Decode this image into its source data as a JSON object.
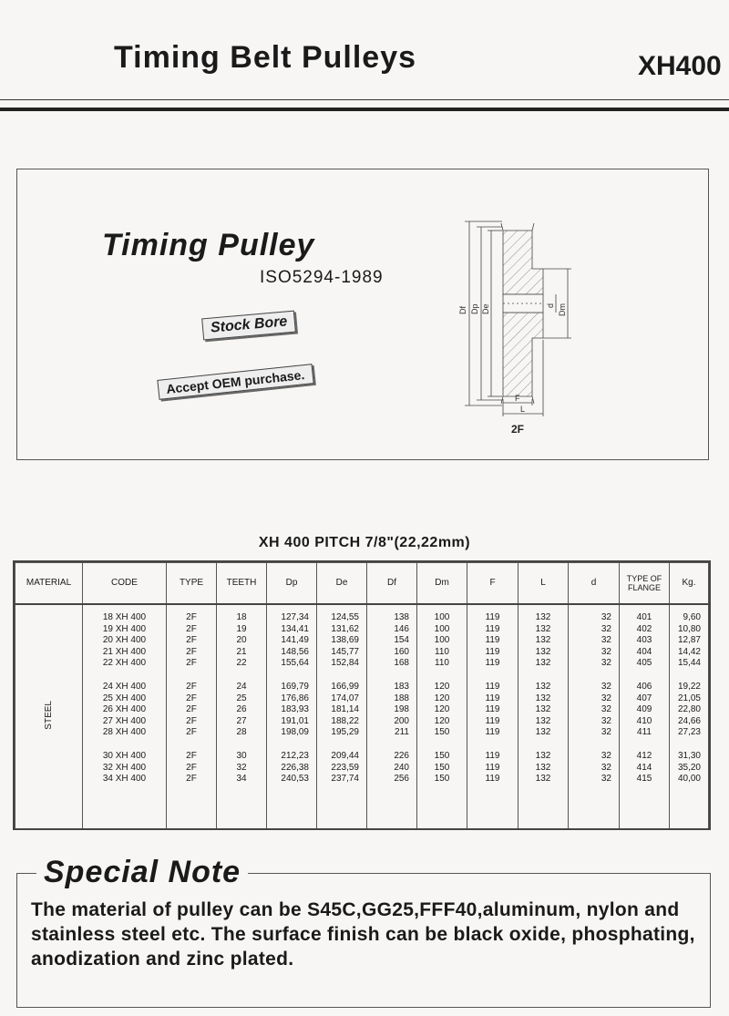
{
  "header": {
    "title": "Timing Belt Pulleys",
    "code": "XH400"
  },
  "banner": {
    "heading": "Timing Pulley",
    "standard": "ISO5294-1989",
    "tag_stock": "Stock Bore",
    "tag_oem": "Accept OEM purchase.",
    "diagram_labels": {
      "df": "Df",
      "dp": "Dp",
      "de": "De",
      "d": "d",
      "dm": "Dm",
      "f": "F",
      "l": "L",
      "type": "2F"
    }
  },
  "table": {
    "title": "XH 400 PITCH 7/8\"(22,22mm)",
    "columns": [
      "MATERIAL",
      "CODE",
      "TYPE",
      "TEETH",
      "Dp",
      "De",
      "Df",
      "Dm",
      "F",
      "L",
      "d",
      "TYPE OF FLANGE",
      "Kg."
    ],
    "material": "STEEL",
    "groups": [
      [
        [
          "18 XH 400",
          "2F",
          "18",
          "127,34",
          "124,55",
          "138",
          "100",
          "119",
          "132",
          "32",
          "401",
          "9,60"
        ],
        [
          "19 XH 400",
          "2F",
          "19",
          "134,41",
          "131,62",
          "146",
          "100",
          "119",
          "132",
          "32",
          "402",
          "10,80"
        ],
        [
          "20 XH 400",
          "2F",
          "20",
          "141,49",
          "138,69",
          "154",
          "100",
          "119",
          "132",
          "32",
          "403",
          "12,87"
        ],
        [
          "21 XH 400",
          "2F",
          "21",
          "148,56",
          "145,77",
          "160",
          "110",
          "119",
          "132",
          "32",
          "404",
          "14,42"
        ],
        [
          "22 XH 400",
          "2F",
          "22",
          "155,64",
          "152,84",
          "168",
          "110",
          "119",
          "132",
          "32",
          "405",
          "15,44"
        ]
      ],
      [
        [
          "24 XH 400",
          "2F",
          "24",
          "169,79",
          "166,99",
          "183",
          "120",
          "119",
          "132",
          "32",
          "406",
          "19,22"
        ],
        [
          "25 XH 400",
          "2F",
          "25",
          "176,86",
          "174,07",
          "188",
          "120",
          "119",
          "132",
          "32",
          "407",
          "21,05"
        ],
        [
          "26 XH 400",
          "2F",
          "26",
          "183,93",
          "181,14",
          "198",
          "120",
          "119",
          "132",
          "32",
          "409",
          "22,80"
        ],
        [
          "27 XH 400",
          "2F",
          "27",
          "191,01",
          "188,22",
          "200",
          "120",
          "119",
          "132",
          "32",
          "410",
          "24,66"
        ],
        [
          "28 XH 400",
          "2F",
          "28",
          "198,09",
          "195,29",
          "211",
          "150",
          "119",
          "132",
          "32",
          "411",
          "27,23"
        ]
      ],
      [
        [
          "30 XH 400",
          "2F",
          "30",
          "212,23",
          "209,44",
          "226",
          "150",
          "119",
          "132",
          "32",
          "412",
          "31,30"
        ],
        [
          "32 XH 400",
          "2F",
          "32",
          "226,38",
          "223,59",
          "240",
          "150",
          "119",
          "132",
          "32",
          "414",
          "35,20"
        ],
        [
          "34 XH 400",
          "2F",
          "34",
          "240,53",
          "237,74",
          "256",
          "150",
          "119",
          "132",
          "32",
          "415",
          "40,00"
        ]
      ]
    ]
  },
  "note": {
    "title": "Special Note",
    "text": "The material of pulley can be S45C,GG25,FFF40,aluminum, nylon and stainless steel etc. The surface finish can be black oxide, phosphating, anodization and zinc plated."
  }
}
